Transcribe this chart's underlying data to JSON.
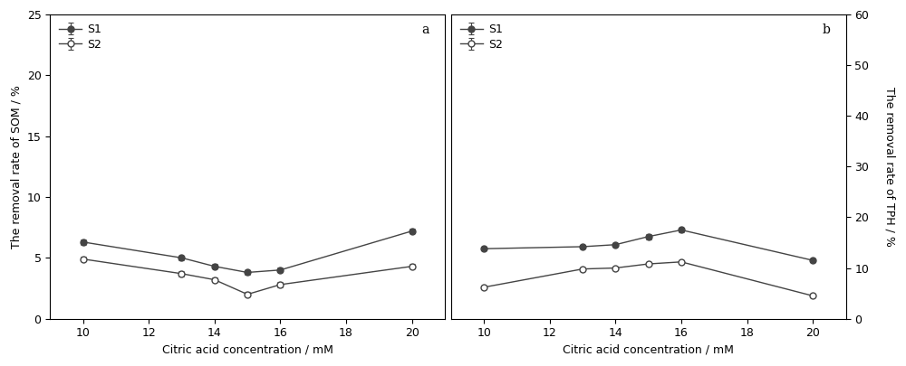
{
  "x": [
    10,
    13,
    14,
    15,
    16,
    20
  ],
  "panel_a": {
    "S1_y": [
      6.3,
      5.0,
      4.3,
      3.8,
      4.0,
      7.2
    ],
    "S1_err": [
      0.2,
      0.2,
      0.2,
      0.2,
      0.2,
      0.2
    ],
    "S2_y": [
      4.9,
      3.7,
      3.2,
      2.0,
      2.8,
      4.3
    ],
    "S2_err": [
      0.2,
      0.2,
      0.2,
      0.2,
      0.2,
      0.2
    ],
    "ylabel": "The removal rate of SOM / %",
    "ylim": [
      0,
      25
    ],
    "yticks": [
      0,
      5,
      10,
      15,
      20,
      25
    ],
    "label": "a"
  },
  "panel_b": {
    "S1_y": [
      13.8,
      14.2,
      14.6,
      16.2,
      17.5,
      11.5
    ],
    "S1_err": [
      0.4,
      0.2,
      0.25,
      0.5,
      0.5,
      0.35
    ],
    "S2_y": [
      6.2,
      9.8,
      10.0,
      10.8,
      11.2,
      4.5
    ],
    "S2_err": [
      0.35,
      0.35,
      0.35,
      0.35,
      0.35,
      0.35
    ],
    "ylabel": "The removal rate of TPH / %",
    "ylim": [
      0,
      60
    ],
    "yticks": [
      0,
      10,
      20,
      30,
      40,
      50,
      60
    ],
    "label": "b"
  },
  "xlabel": "Citric acid concentration / mM",
  "xticks": [
    10,
    12,
    14,
    16,
    18,
    20
  ],
  "xlim": [
    9,
    21
  ],
  "legend_S1": "S1",
  "legend_S2": "S2",
  "line_color": "#444444",
  "marker_size": 5,
  "linewidth": 1.0,
  "font_size": 9,
  "tick_fontsize": 9,
  "label_fontsize": 9,
  "cap_size": 2
}
